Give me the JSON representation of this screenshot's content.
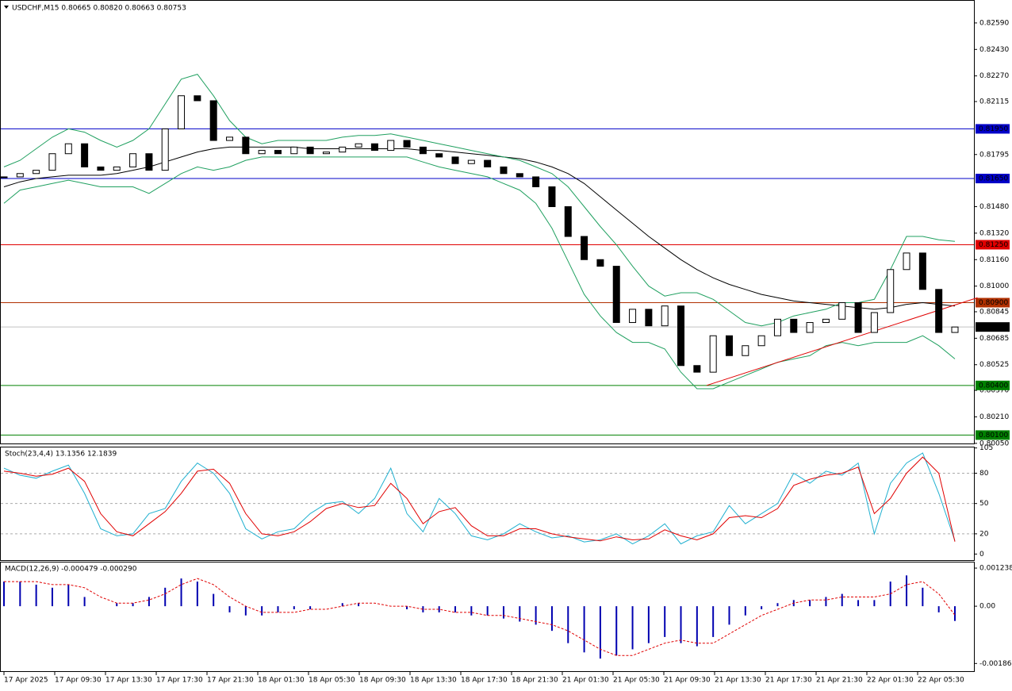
{
  "chart_data": [
    {
      "type": "candlestick",
      "title": "USDCHF,M15  0.80665 0.80820 0.80663 0.80753",
      "close": [
        0.8166,
        0.8168,
        0.817,
        0.818,
        0.8186,
        0.8172,
        0.817,
        0.8172,
        0.818,
        0.817,
        0.8195,
        0.8215,
        0.8212,
        0.8188,
        0.819,
        0.818,
        0.8182,
        0.818,
        0.8184,
        0.818,
        0.8181,
        0.8184,
        0.8186,
        0.8182,
        0.8188,
        0.8184,
        0.818,
        0.8178,
        0.8174,
        0.8176,
        0.8172,
        0.8168,
        0.8166,
        0.816,
        0.8148,
        0.813,
        0.8116,
        0.8112,
        0.8078,
        0.8086,
        0.8076,
        0.8088,
        0.8052,
        0.8048,
        0.807,
        0.8058,
        0.8064,
        0.807,
        0.808,
        0.8072,
        0.8078,
        0.808,
        0.809,
        0.8072,
        0.8084,
        0.811,
        0.812,
        0.8098,
        0.8072,
        0.80753
      ],
      "series": [
        {
          "color": "#000000",
          "values": [
            0.816,
            0.8163,
            0.8165,
            0.8166,
            0.8167,
            0.8167,
            0.8167,
            0.8168,
            0.817,
            0.8172,
            0.8175,
            0.8178,
            0.8181,
            0.8183,
            0.8184,
            0.8184,
            0.8184,
            0.8184,
            0.8184,
            0.8183,
            0.8183,
            0.8183,
            0.8183,
            0.8183,
            0.8183,
            0.8183,
            0.8182,
            0.8182,
            0.8181,
            0.818,
            0.8179,
            0.8178,
            0.8177,
            0.8175,
            0.8172,
            0.8168,
            0.8162,
            0.8154,
            0.8146,
            0.8138,
            0.813,
            0.8123,
            0.8116,
            0.811,
            0.8105,
            0.8101,
            0.8098,
            0.8095,
            0.8093,
            0.8091,
            0.809,
            0.8089,
            0.8088,
            0.8087,
            0.8086,
            0.8087,
            0.8089,
            0.809,
            0.8089,
            0.8088
          ]
        },
        {
          "color": "#20a060",
          "values": [
            0.8172,
            0.8176,
            0.8183,
            0.819,
            0.8195,
            0.8193,
            0.8188,
            0.8184,
            0.8188,
            0.8195,
            0.821,
            0.8225,
            0.8228,
            0.8215,
            0.82,
            0.819,
            0.8186,
            0.8188,
            0.8188,
            0.8188,
            0.8188,
            0.819,
            0.8191,
            0.8191,
            0.8192,
            0.819,
            0.8188,
            0.8186,
            0.8184,
            0.8182,
            0.818,
            0.8178,
            0.8176,
            0.8172,
            0.8168,
            0.816,
            0.8148,
            0.8136,
            0.8125,
            0.8112,
            0.81,
            0.8094,
            0.8096,
            0.8096,
            0.8092,
            0.8085,
            0.8078,
            0.8076,
            0.8078,
            0.8082,
            0.8084,
            0.8086,
            0.809,
            0.809,
            0.8092,
            0.811,
            0.813,
            0.813,
            0.8128,
            0.8127
          ]
        },
        {
          "color": "#20a060",
          "values": [
            0.815,
            0.8158,
            0.816,
            0.8162,
            0.8164,
            0.8162,
            0.816,
            0.816,
            0.816,
            0.8156,
            0.8162,
            0.8168,
            0.8172,
            0.817,
            0.8172,
            0.8176,
            0.8178,
            0.8178,
            0.8178,
            0.8178,
            0.8178,
            0.8178,
            0.8178,
            0.8178,
            0.8178,
            0.8178,
            0.8175,
            0.8172,
            0.817,
            0.8168,
            0.8166,
            0.8162,
            0.8158,
            0.815,
            0.8135,
            0.8115,
            0.8095,
            0.8082,
            0.8072,
            0.8066,
            0.8066,
            0.8062,
            0.8048,
            0.8038,
            0.8038,
            0.8042,
            0.8046,
            0.805,
            0.8054,
            0.8056,
            0.8058,
            0.8064,
            0.8066,
            0.8064,
            0.8066,
            0.8066,
            0.8066,
            0.807,
            0.8064,
            0.8056
          ]
        }
      ],
      "trendline": {
        "color": "#e00000",
        "x": [
          43.6,
          60.4
        ],
        "values": [
          0.804,
          0.8093
        ]
      },
      "levels": [
        {
          "value": 0.8195,
          "label": "0.81950",
          "color": "#0000c8"
        },
        {
          "value": 0.8165,
          "label": "0.81650",
          "color": "#0000c8"
        },
        {
          "value": 0.8125,
          "label": "0.81250",
          "color": "#e00000"
        },
        {
          "value": 0.809,
          "label": "0.80900",
          "color": "#b03000"
        },
        {
          "value": 0.80753,
          "label": "0.80753",
          "color": "#c0c0c0"
        },
        {
          "value": 0.804,
          "label": "0.80400",
          "color": "#008000"
        },
        {
          "value": 0.801,
          "label": "0.80100",
          "color": "#008000"
        }
      ],
      "ylim": [
        0.80054,
        0.82719
      ],
      "yticks": [
        {
          "value": 0.8259,
          "label": "0.82590"
        },
        {
          "value": 0.8243,
          "label": "0.82430"
        },
        {
          "value": 0.8227,
          "label": "0.82270"
        },
        {
          "value": 0.82115,
          "label": "0.82115"
        },
        {
          "value": 0.81795,
          "label": "0.81795"
        },
        {
          "value": 0.8148,
          "label": "0.81480"
        },
        {
          "value": 0.8132,
          "label": "0.81320"
        },
        {
          "value": 0.8116,
          "label": "0.81160"
        },
        {
          "value": 0.81,
          "label": "0.81000"
        },
        {
          "value": 0.80845,
          "label": "0.80845"
        },
        {
          "value": 0.80685,
          "label": "0.80685"
        },
        {
          "value": 0.80525,
          "label": "0.80525"
        },
        {
          "value": 0.8037,
          "label": "0.80370"
        },
        {
          "value": 0.8021,
          "label": "0.80210"
        },
        {
          "value": 0.8005,
          "label": "0.80050"
        }
      ],
      "time_labels": [
        "17 Apr 2025",
        "17 Apr 09:30",
        "17 Apr 13:30",
        "17 Apr 17:30",
        "17 Apr 21:30",
        "18 Apr 01:30",
        "18 Apr 05:30",
        "18 Apr 09:30",
        "18 Apr 13:30",
        "18 Apr 17:30",
        "18 Apr 21:30",
        "21 Apr 01:30",
        "21 Apr 05:30",
        "21 Apr 09:30",
        "21 Apr 13:30",
        "21 Apr 17:30",
        "21 Apr 21:30",
        "22 Apr 01:30",
        "22 Apr 05:30"
      ]
    },
    {
      "type": "line",
      "title": "Stoch(23,4,4) 13.1356 12.1839",
      "series": [
        {
          "color": "#20b0d0",
          "values": [
            85,
            78,
            75,
            82,
            88,
            60,
            25,
            18,
            20,
            40,
            45,
            72,
            90,
            80,
            60,
            25,
            15,
            22,
            25,
            40,
            50,
            52,
            40,
            55,
            85,
            40,
            22,
            55,
            40,
            18,
            14,
            20,
            30,
            22,
            16,
            18,
            12,
            14,
            20,
            10,
            18,
            30,
            10,
            18,
            22,
            48,
            30,
            40,
            50,
            80,
            70,
            82,
            78,
            90,
            20,
            70,
            90,
            100,
            60,
            13.1356
          ]
        },
        {
          "color": "#e00000",
          "values": [
            82,
            80,
            77,
            79,
            85,
            72,
            40,
            22,
            18,
            30,
            42,
            60,
            82,
            84,
            70,
            40,
            20,
            18,
            22,
            32,
            45,
            50,
            46,
            48,
            70,
            55,
            30,
            42,
            46,
            28,
            18,
            18,
            25,
            25,
            20,
            17,
            15,
            13,
            17,
            14,
            15,
            24,
            18,
            14,
            20,
            36,
            38,
            36,
            45,
            68,
            74,
            78,
            80,
            86,
            40,
            55,
            80,
            96,
            80,
            12.1839
          ]
        }
      ],
      "levels": [
        80,
        50,
        20
      ],
      "ylim": [
        -6,
        105.5
      ],
      "yticks": [
        105,
        80,
        50,
        20,
        0
      ]
    },
    {
      "type": "macd",
      "title": "MACD(12,26,9) -0.000479 -0.000290",
      "series": [
        {
          "color": "#0000b0",
          "values": [
            0.0008,
            0.0008,
            0.0007,
            0.0006,
            0.0007,
            0.0003,
            0,
            0.0001,
            0.0001,
            0.0003,
            0.0006,
            0.0009,
            0.0008,
            0.0004,
            -0.0002,
            -0.0003,
            -0.0003,
            -0.0002,
            -0.0001,
            -0.0001,
            0,
            0.0001,
            0.0001,
            0,
            0,
            -0.0001,
            -0.0002,
            -0.0002,
            -0.0002,
            -0.0003,
            -0.0003,
            -0.0004,
            -0.0005,
            -0.0006,
            -0.0008,
            -0.0012,
            -0.0015,
            -0.0017,
            -0.0016,
            -0.0014,
            -0.0012,
            -0.001,
            -0.0012,
            -0.0013,
            -0.001,
            -0.0006,
            -0.0003,
            -0.0001,
            0.0001,
            0.0002,
            0.0002,
            0.0003,
            0.0004,
            0.0002,
            0.0002,
            0.0008,
            0.001,
            0.0006,
            -0.0002,
            -0.000479
          ]
        },
        {
          "color": "#e00000",
          "values": [
            0.0008,
            0.0008,
            0.0008,
            0.0007,
            0.0007,
            0.0006,
            0.0003,
            0.0001,
            0.0001,
            0.0002,
            0.0004,
            0.0007,
            0.0009,
            0.0007,
            0.0003,
            0,
            -0.0002,
            -0.0002,
            -0.0002,
            -0.0001,
            -0.0001,
            0,
            0.0001,
            0.0001,
            0,
            0,
            -0.0001,
            -0.0001,
            -0.0002,
            -0.0002,
            -0.0003,
            -0.0003,
            -0.0004,
            -0.0005,
            -0.0006,
            -0.0008,
            -0.0011,
            -0.0014,
            -0.0016,
            -0.0016,
            -0.0014,
            -0.0012,
            -0.0011,
            -0.0012,
            -0.0012,
            -0.0009,
            -0.0006,
            -0.0003,
            -0.0001,
            0.0001,
            0.0002,
            0.0002,
            0.0003,
            0.0003,
            0.0003,
            0.0004,
            0.0007,
            0.0008,
            0.0004,
            -0.00029
          ]
        }
      ],
      "ylim": [
        -0.00211,
        0.00142
      ],
      "yticks": [
        0.001238,
        {
          "value": 0,
          "label": "0.00"
        },
        -0.00186
      ]
    }
  ]
}
